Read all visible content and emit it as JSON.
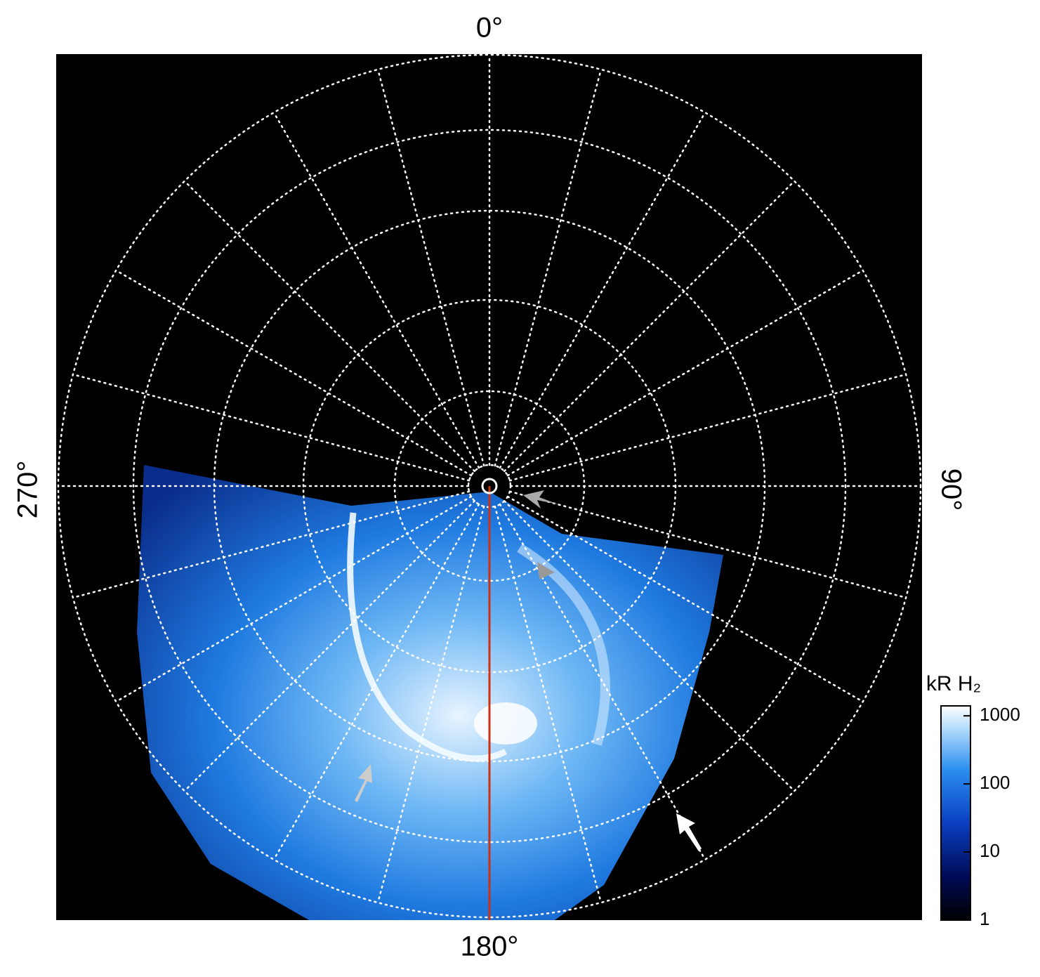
{
  "angle_labels": {
    "top": "0°",
    "right": "90°",
    "bottom": "180°",
    "left": "270°"
  },
  "colorbar": {
    "title": "kR H₂",
    "scale": "log",
    "lim": [
      1,
      1400
    ],
    "ticks": [
      1,
      10,
      100,
      1000
    ]
  }
}
